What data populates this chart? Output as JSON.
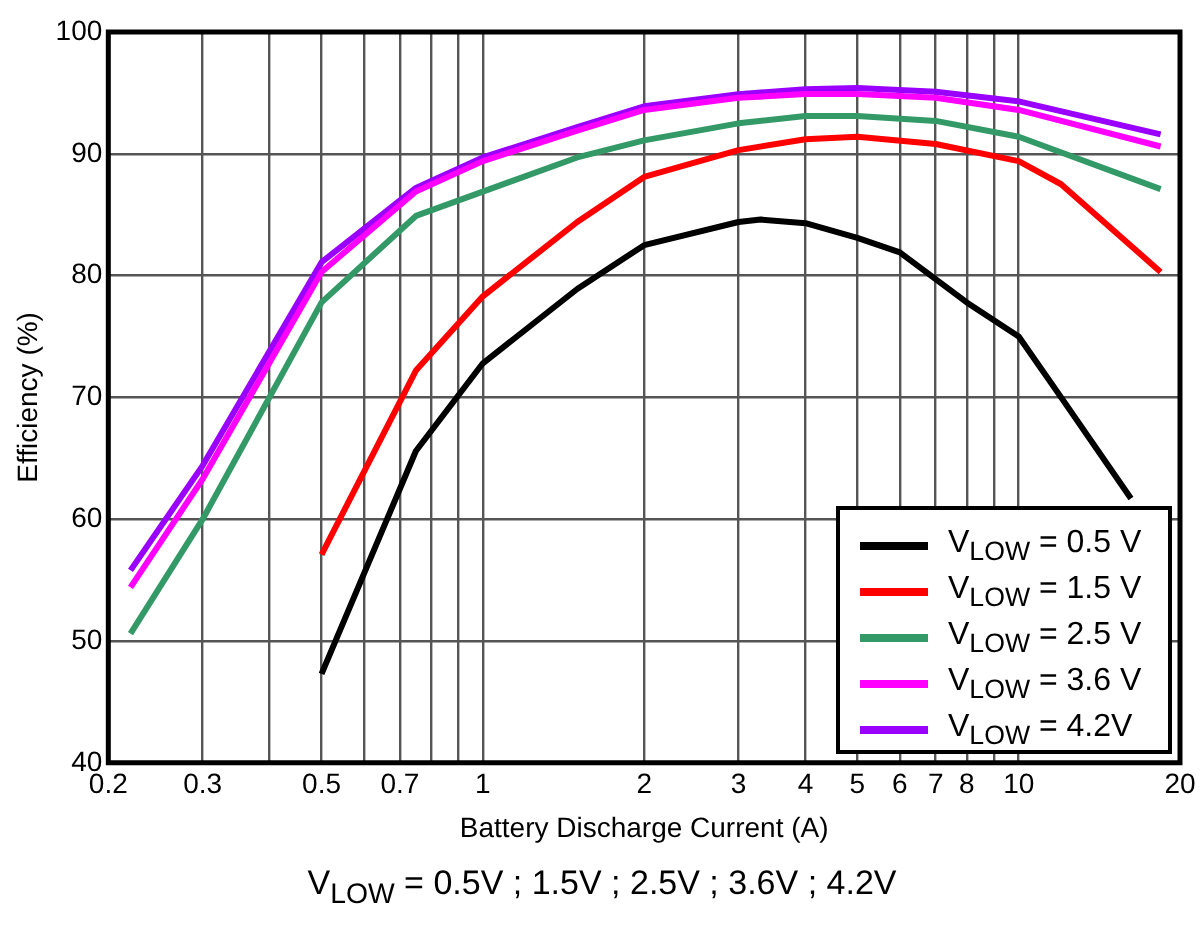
{
  "chart_data": {
    "type": "line",
    "xlabel": "Battery Discharge Current (A)",
    "ylabel": "Efficiency (%)",
    "log": "x",
    "xlim": [
      0.2,
      20
    ],
    "ylim": [
      40,
      100
    ],
    "xticks": [
      0.2,
      0.3,
      {
        "value": 0.4,
        "label": null
      },
      0.5,
      {
        "value": 0.6,
        "label": null
      },
      0.7,
      {
        "value": 0.8,
        "label": null
      },
      {
        "value": 0.9,
        "label": null
      },
      1,
      2,
      3,
      4,
      5,
      6,
      7,
      8,
      {
        "value": 9,
        "label": null
      },
      10,
      20
    ],
    "yticks": [
      40,
      50,
      60,
      70,
      80,
      90,
      100
    ],
    "grid": true,
    "legend": "bottom right",
    "marker": "none",
    "line_style": "solid",
    "annotations": [
      "V$_{LOW}$ = 0.5V ; 1.5V ; 2.5V ; 3.6V ; 4.2V"
    ],
    "series": [
      {
        "name": "V$_{LOW}$ = 0.5 V",
        "color": "#000000",
        "x": [
          0.5,
          0.75,
          1,
          1.5,
          2,
          3,
          3.3,
          4,
          5,
          6,
          8,
          10,
          12,
          16.2
        ],
        "values": [
          47.3,
          65.6,
          72.8,
          78.9,
          82.5,
          84.4,
          84.6,
          84.3,
          83.1,
          81.9,
          77.8,
          75,
          70,
          61.7
        ]
      },
      {
        "name": "V$_{LOW}$ = 1.5 V",
        "color": "#ff0000",
        "x": [
          0.5,
          0.75,
          1,
          1.5,
          2,
          3,
          4,
          5,
          7,
          10,
          12,
          18.4
        ],
        "values": [
          57.1,
          72.2,
          78.3,
          84.4,
          88.1,
          90.3,
          91.2,
          91.4,
          90.8,
          89.4,
          87.5,
          80.3
        ]
      },
      {
        "name": "V$_{LOW}$ = 2.5 V",
        "color": "#339966",
        "x": [
          0.22,
          0.3,
          0.5,
          0.75,
          1,
          1.5,
          2,
          3,
          4,
          5,
          7,
          10,
          18.4
        ],
        "values": [
          50.6,
          60,
          77.8,
          84.9,
          86.9,
          89.7,
          91.1,
          92.5,
          93.1,
          93.1,
          92.7,
          91.4,
          87.1
        ]
      },
      {
        "name": "V$_{LOW}$ = 3.6 V",
        "color": "#ff00ff",
        "x": [
          0.22,
          0.3,
          0.5,
          0.75,
          1,
          1.5,
          2,
          3,
          4,
          5,
          7,
          10,
          18.4
        ],
        "values": [
          54.4,
          63.3,
          80.3,
          86.9,
          89.4,
          91.9,
          93.6,
          94.6,
          94.9,
          94.9,
          94.6,
          93.6,
          90.6
        ]
      },
      {
        "name": "V$_{LOW}$ = 4.2V",
        "color": "#9900ff",
        "x": [
          0.22,
          0.3,
          0.5,
          0.75,
          1,
          1.5,
          2,
          3,
          4,
          5,
          7,
          10,
          18.4
        ],
        "values": [
          55.8,
          64.4,
          81.1,
          87.2,
          89.7,
          92.2,
          93.9,
          94.9,
          95.3,
          95.4,
          95.1,
          94.3,
          91.6
        ]
      }
    ]
  }
}
